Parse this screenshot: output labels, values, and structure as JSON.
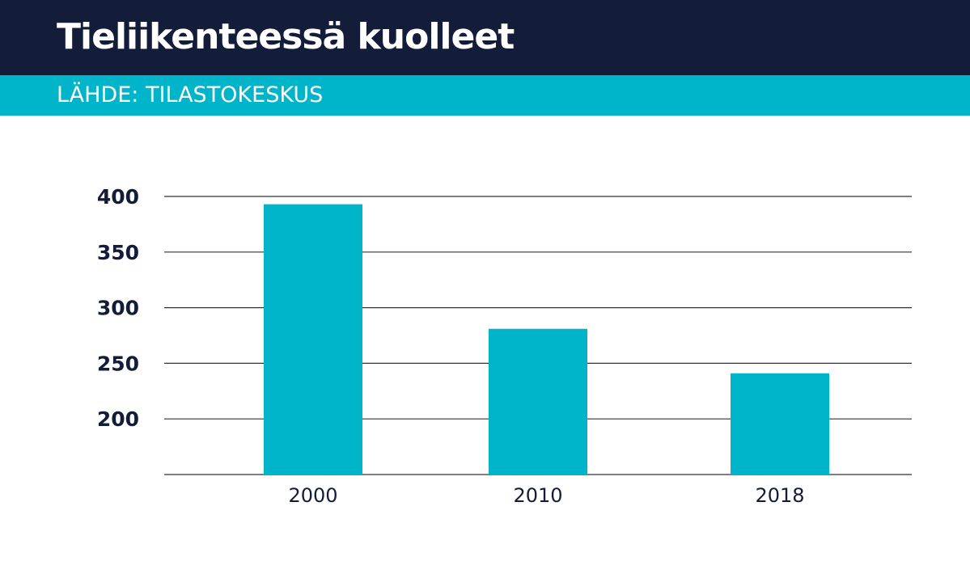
{
  "header": {
    "title": "Tieliikenteessä kuolleet",
    "source": "LÄHDE:  TILASTOKESKUS"
  },
  "colors": {
    "header_bg": "#131c38",
    "subheader_bg": "#00b5c9",
    "bar": "#00b5c9",
    "gridline": "#333333"
  },
  "chart_data": {
    "type": "bar",
    "categories": [
      "2000",
      "2010",
      "2018"
    ],
    "values": [
      393,
      281,
      241
    ],
    "title": "Tieliikenteessä kuolleet",
    "xlabel": "",
    "ylabel": "",
    "ylim": [
      150,
      400
    ],
    "yticks": [
      200,
      250,
      300,
      350,
      400
    ],
    "grid": true,
    "legend": "none"
  }
}
